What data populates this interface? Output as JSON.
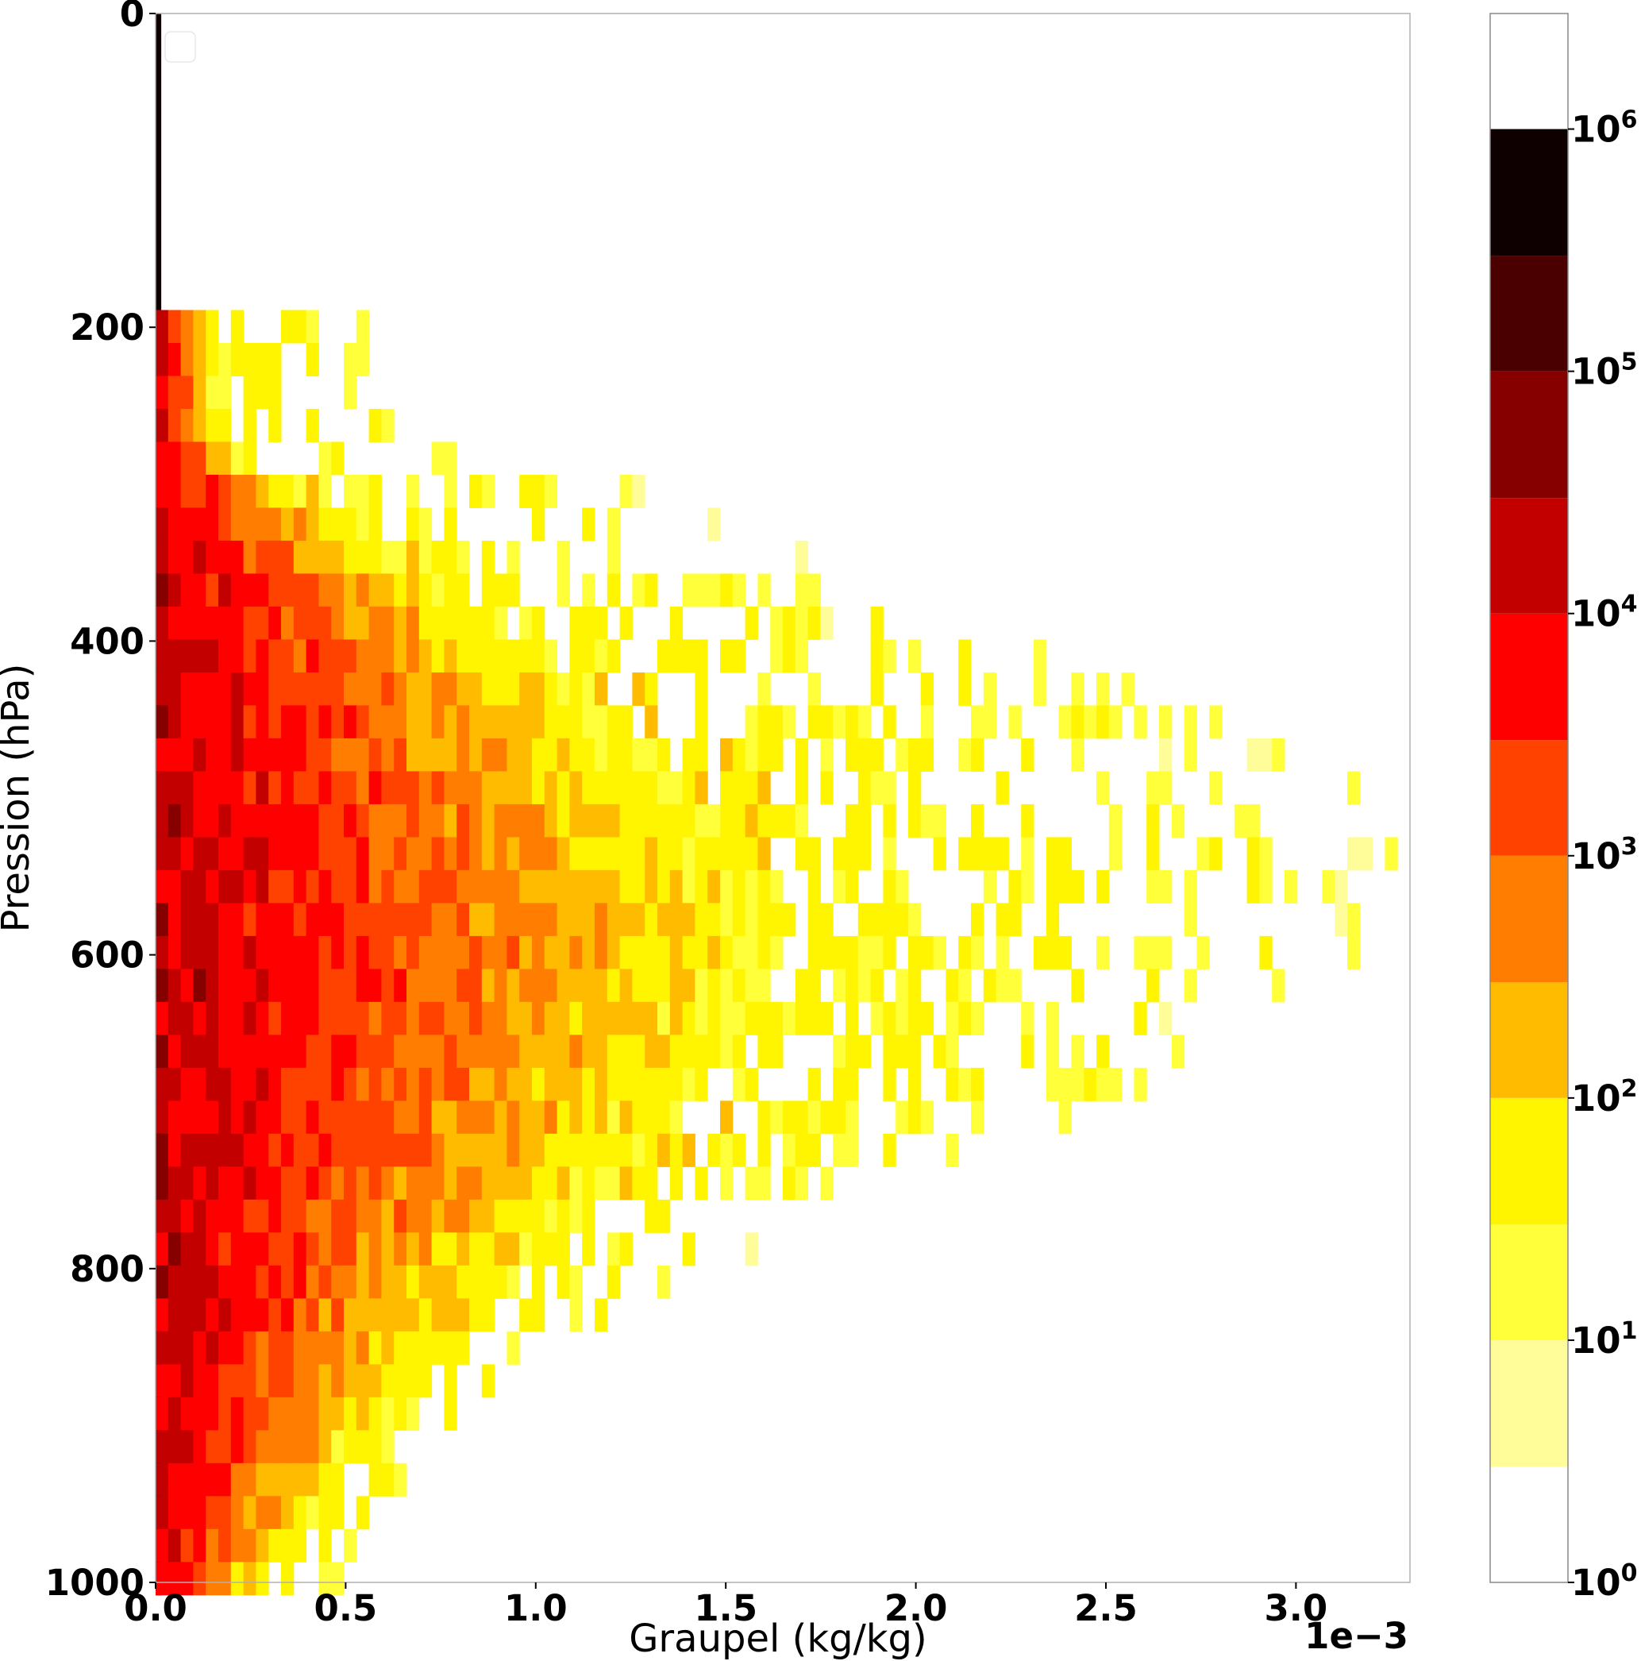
{
  "chart_data": {
    "type": "heatmap",
    "title": "",
    "xlabel": "Graupel (kg/kg)",
    "ylabel": "Pression (hPa)",
    "x_offset_label": "1e−3",
    "xlim": [
      0.0,
      3.3
    ],
    "ylim": [
      1000,
      0
    ],
    "y_inverted": true,
    "x_ticks": [
      "0.0",
      "0.5",
      "1.0",
      "1.5",
      "2.0",
      "2.5",
      "3.0"
    ],
    "x_tick_values": [
      0.0,
      0.5,
      1.0,
      1.5,
      2.0,
      2.5,
      3.0
    ],
    "y_ticks": [
      "0",
      "200",
      "400",
      "600",
      "800",
      "1000"
    ],
    "y_tick_values": [
      0,
      200,
      400,
      600,
      800,
      1000
    ],
    "x_bin_width": 0.033,
    "y_bin_width": 21,
    "colorbar": {
      "scale": "log",
      "range": [
        1,
        3000000
      ],
      "levels": [
        1,
        3,
        10,
        30,
        100,
        300,
        1000,
        3000,
        10000,
        30000,
        100000,
        300000,
        1000000,
        3000000
      ],
      "colors": [
        "#ffffff",
        "#fffd9a",
        "#ffff3a",
        "#fff500",
        "#ffbb00",
        "#ff7d00",
        "#ff4200",
        "#ff0000",
        "#c20000",
        "#870000",
        "#4a0000",
        "#0e0000"
      ],
      "tick_labels": [
        {
          "base": "10",
          "exp": "0",
          "value": 1
        },
        {
          "base": "10",
          "exp": "1",
          "value": 10
        },
        {
          "base": "10",
          "exp": "2",
          "value": 100
        },
        {
          "base": "10",
          "exp": "3",
          "value": 1000
        },
        {
          "base": "10",
          "exp": "4",
          "value": 10000
        },
        {
          "base": "10",
          "exp": "5",
          "value": 100000
        },
        {
          "base": "10",
          "exp": "6",
          "value": 1000000
        }
      ]
    },
    "profile_pressure": [
      270,
      300,
      350,
      400,
      450,
      500,
      550,
      600,
      650,
      700,
      750,
      800,
      850,
      900,
      950,
      1000
    ],
    "profile_dense_extent_x": [
      0.15,
      0.35,
      0.7,
      1.0,
      1.25,
      1.4,
      1.6,
      1.65,
      1.55,
      1.4,
      1.2,
      1.0,
      0.8,
      0.6,
      0.45,
      0.3
    ],
    "profile_scatter_extent_x": [
      0.7,
      1.25,
      1.75,
      2.25,
      2.9,
      3.25,
      3.3,
      3.2,
      2.9,
      2.5,
      1.9,
      1.6,
      1.0,
      0.8,
      0.7,
      0.5
    ],
    "note_upper": "Above about 180 hPa only the first bin (x < 0.03) is populated, with counts above 10^6."
  }
}
